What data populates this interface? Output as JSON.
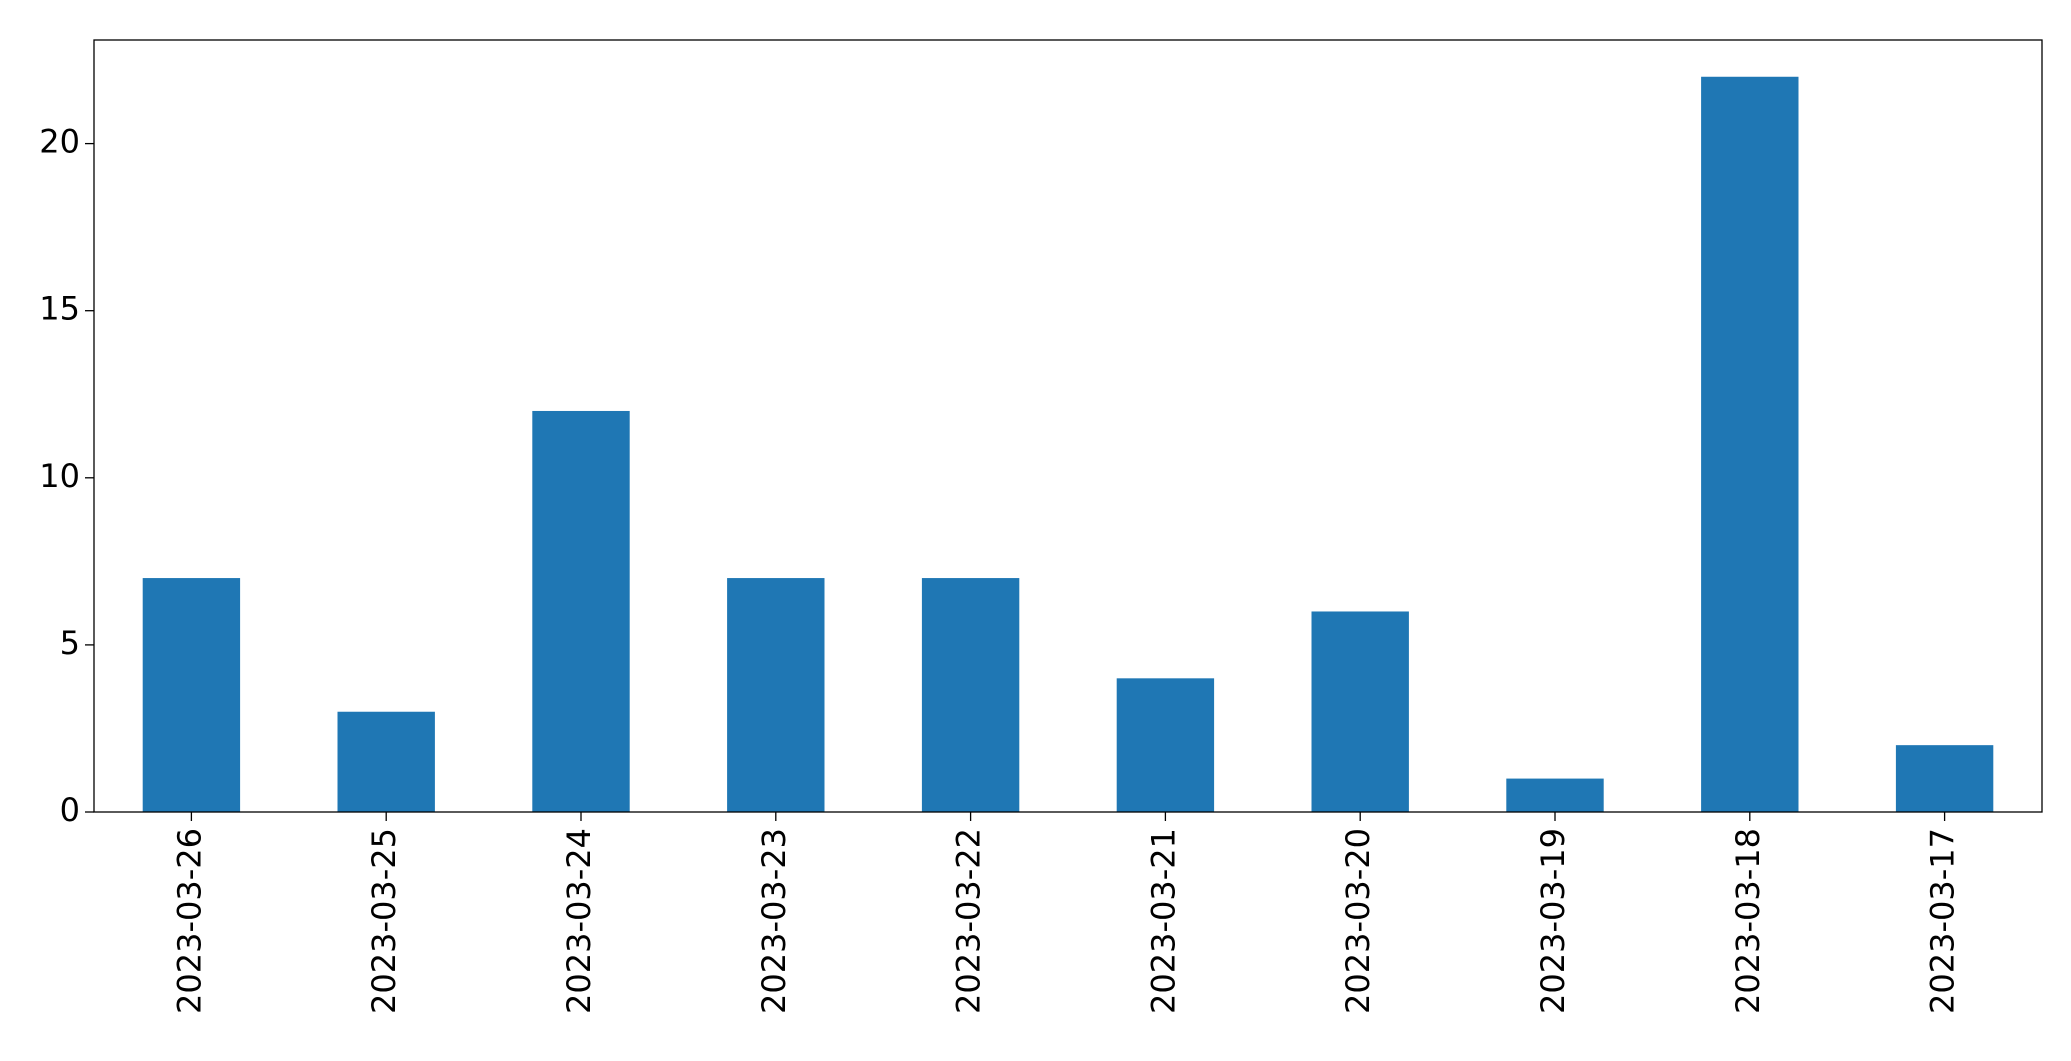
{
  "chart_data": {
    "type": "bar",
    "categories": [
      "2023-03-26",
      "2023-03-25",
      "2023-03-24",
      "2023-03-23",
      "2023-03-22",
      "2023-03-21",
      "2023-03-20",
      "2023-03-19",
      "2023-03-18",
      "2023-03-17"
    ],
    "values": [
      7,
      3,
      12,
      7,
      7,
      4,
      6,
      1,
      22,
      2
    ],
    "color": "#1f77b4",
    "ylim": [
      0,
      23.1
    ],
    "yticks": [
      0,
      5,
      10,
      15,
      20
    ],
    "grid": false
  }
}
